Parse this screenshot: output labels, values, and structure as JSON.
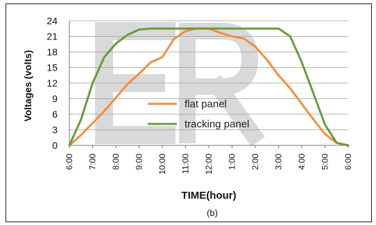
{
  "chart_data": {
    "type": "line",
    "title": "",
    "xlabel": "TIME(hour)",
    "ylabel": "Voltages (volts)",
    "caption": "(b)",
    "x_ticks": [
      "6:00",
      "7:00",
      "8:00",
      "9:00",
      "10:00",
      "11:00",
      "12:00",
      "1:00",
      "2:00",
      "3:00",
      "4:00",
      "5:00",
      "6:00"
    ],
    "y_ticks": [
      "0",
      "3",
      "6",
      "9",
      "12",
      "15",
      "18",
      "21",
      "24"
    ],
    "ylim": [
      0,
      24
    ],
    "grid": true,
    "legend_position": "center",
    "x": [
      0,
      0.5,
      1,
      1.5,
      2,
      2.5,
      3,
      3.5,
      4,
      4.5,
      5,
      5.5,
      6,
      6.5,
      7,
      7.5,
      8,
      8.5,
      9,
      9.5,
      10,
      10.5,
      11,
      11.5,
      12
    ],
    "series": [
      {
        "name": "flat panel",
        "color": "#f58d3d",
        "values": [
          0,
          2,
          4.3,
          6.6,
          9.2,
          11.8,
          13.8,
          16,
          17,
          20.5,
          22,
          22.5,
          22.5,
          21.7,
          21,
          20.6,
          19,
          16.5,
          13.5,
          11,
          8,
          5,
          2.2,
          0.5,
          0
        ]
      },
      {
        "name": "tracking panel",
        "color": "#6a9a3a",
        "values": [
          0,
          5,
          12,
          17,
          19.6,
          21.3,
          22.3,
          22.5,
          22.5,
          22.5,
          22.5,
          22.5,
          22.5,
          22.5,
          22.5,
          22.5,
          22.5,
          22.5,
          22.5,
          21,
          16,
          10,
          4,
          0.5,
          0
        ]
      }
    ]
  }
}
